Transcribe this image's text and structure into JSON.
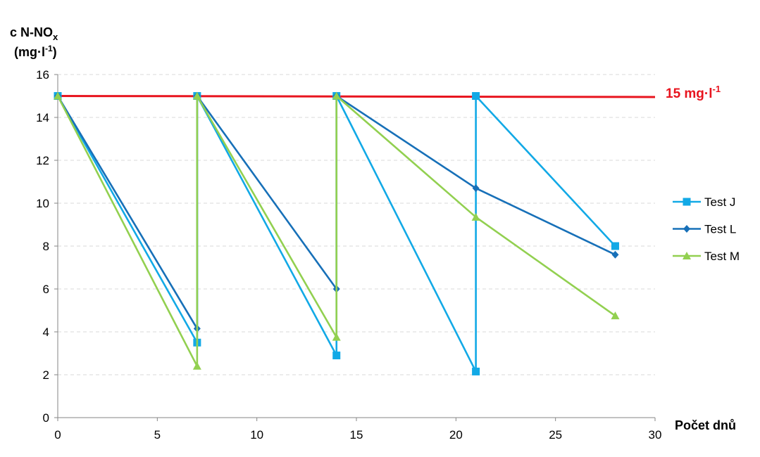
{
  "chart_data": {
    "type": "line",
    "ylabel_main": "c N-NO",
    "ylabel_sub": "x",
    "ylabel_unit": "(mg·l",
    "ylabel_unit_sup": "-1",
    "ylabel_unit_close": ")",
    "xlabel": "Počet dnů",
    "xlim": [
      0,
      30
    ],
    "ylim": [
      0,
      16
    ],
    "x_ticks": [
      "0",
      "5",
      "10",
      "15",
      "20",
      "25",
      "30"
    ],
    "y_ticks": [
      "0",
      "2",
      "4",
      "6",
      "8",
      "10",
      "12",
      "14",
      "16"
    ],
    "grid": "horizontal dashed",
    "legend_position": "right",
    "reference_line": {
      "value": 15,
      "label": "15 mg·l",
      "label_sup": "-1",
      "color": "#e8141e"
    },
    "series": [
      {
        "name": "Test J",
        "color": "#12a9e6",
        "marker": "square",
        "points": [
          [
            0,
            15
          ],
          [
            7,
            3.5
          ],
          [
            7,
            15
          ],
          [
            14,
            2.9
          ],
          [
            14,
            15
          ],
          [
            21,
            2.15
          ],
          [
            21,
            15
          ],
          [
            28,
            8
          ]
        ]
      },
      {
        "name": "Test L",
        "color": "#1770b8",
        "marker": "diamond",
        "points": [
          [
            0,
            15
          ],
          [
            7,
            4.15
          ],
          [
            7,
            15
          ],
          [
            14,
            6
          ],
          [
            14,
            15
          ],
          [
            21,
            10.7
          ],
          [
            28,
            7.6
          ]
        ]
      },
      {
        "name": "Test M",
        "color": "#92d050",
        "marker": "triangle",
        "points": [
          [
            0,
            15
          ],
          [
            7,
            2.4
          ],
          [
            7,
            15
          ],
          [
            14,
            3.75
          ],
          [
            14,
            15
          ],
          [
            21,
            9.35
          ],
          [
            28,
            4.75
          ]
        ]
      }
    ]
  }
}
